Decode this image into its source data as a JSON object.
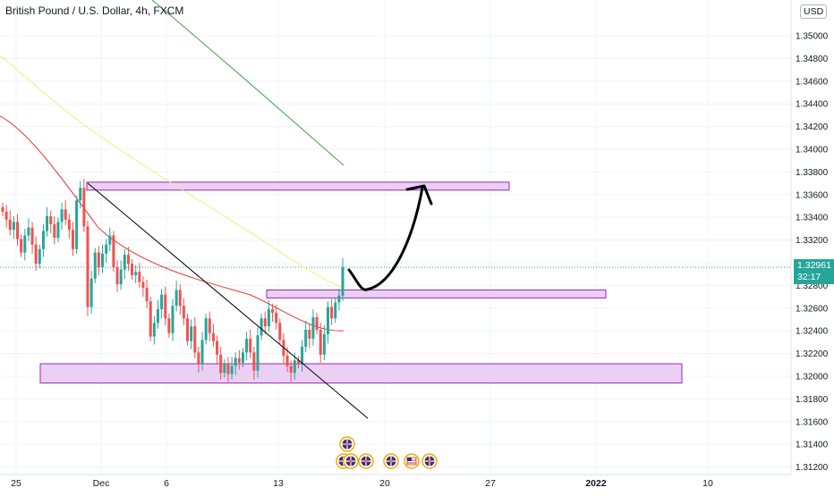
{
  "chart_data": {
    "type": "candlestick",
    "title": "British Pound / U.S. Dollar, 4h, FXCM",
    "currency_label": "USD",
    "last_price": "1.32961",
    "countdown": "32:17",
    "y_axis": {
      "ticks": [
        "1.35000",
        "1.34800",
        "1.34600",
        "1.34400",
        "1.34200",
        "1.34000",
        "1.33800",
        "1.33600",
        "1.33400",
        "1.33200",
        "1.33000",
        "1.32800",
        "1.32600",
        "1.32400",
        "1.32200",
        "1.32000",
        "1.31800",
        "1.31600",
        "1.31400",
        "1.31200"
      ],
      "range": [
        1.3112,
        1.3524
      ]
    },
    "x_axis": {
      "ticks": [
        "25",
        "Dec",
        "6",
        "13",
        "20",
        "27",
        "2022",
        "10"
      ]
    },
    "candles_close": [
      1.3345,
      1.3338,
      1.3329,
      1.3336,
      1.3321,
      1.3309,
      1.3324,
      1.3331,
      1.3316,
      1.3299,
      1.3312,
      1.3328,
      1.3341,
      1.3334,
      1.3322,
      1.3336,
      1.3347,
      1.3338,
      1.3329,
      1.3312,
      1.3355,
      1.3366,
      1.3332,
      1.3261,
      1.3286,
      1.3309,
      1.3296,
      1.3308,
      1.3316,
      1.3324,
      1.3296,
      1.3281,
      1.3294,
      1.3307,
      1.3299,
      1.3289,
      1.3292,
      1.3283,
      1.3278,
      1.3266,
      1.3235,
      1.3247,
      1.3259,
      1.3272,
      1.3251,
      1.3238,
      1.3262,
      1.3276,
      1.3262,
      1.3251,
      1.3231,
      1.3244,
      1.3221,
      1.3211,
      1.3232,
      1.3251,
      1.3238,
      1.3231,
      1.3219,
      1.3203,
      1.3211,
      1.3202,
      1.3209,
      1.3216,
      1.3212,
      1.3221,
      1.3233,
      1.3221,
      1.3205,
      1.3236,
      1.3251,
      1.3244,
      1.3259,
      1.3256,
      1.3247,
      1.3232,
      1.3218,
      1.3209,
      1.3203,
      1.3214,
      1.3211,
      1.3226,
      1.3241,
      1.3233,
      1.3252,
      1.3241,
      1.3219,
      1.3237,
      1.3261,
      1.3251,
      1.3265,
      1.3271,
      1.3296
    ],
    "zones": [
      {
        "from": 1.3364,
        "to": 1.3371
      },
      {
        "from": 1.3269,
        "to": 1.3276
      },
      {
        "from": 1.3194,
        "to": 1.3211
      }
    ],
    "moving_averages": [
      "green",
      "yellow",
      "red"
    ],
    "colors": {
      "up": "#26a69a",
      "down": "#ef5350",
      "zone_fill": "#e7c8f3",
      "zone_border": "#9c27b0",
      "ma_green": "#43a047",
      "ma_yellow": "#f2ec7e",
      "ma_red": "#e53935"
    }
  },
  "events": [
    {
      "icon": "uk-flag-icon"
    },
    {
      "icon": "uk-flag-icon"
    },
    {
      "icon": "uk-flag-icon"
    },
    {
      "icon": "uk-flag-icon"
    },
    {
      "icon": "uk-flag-icon"
    },
    {
      "icon": "us-flag-icon"
    },
    {
      "icon": "uk-flag-icon"
    }
  ]
}
